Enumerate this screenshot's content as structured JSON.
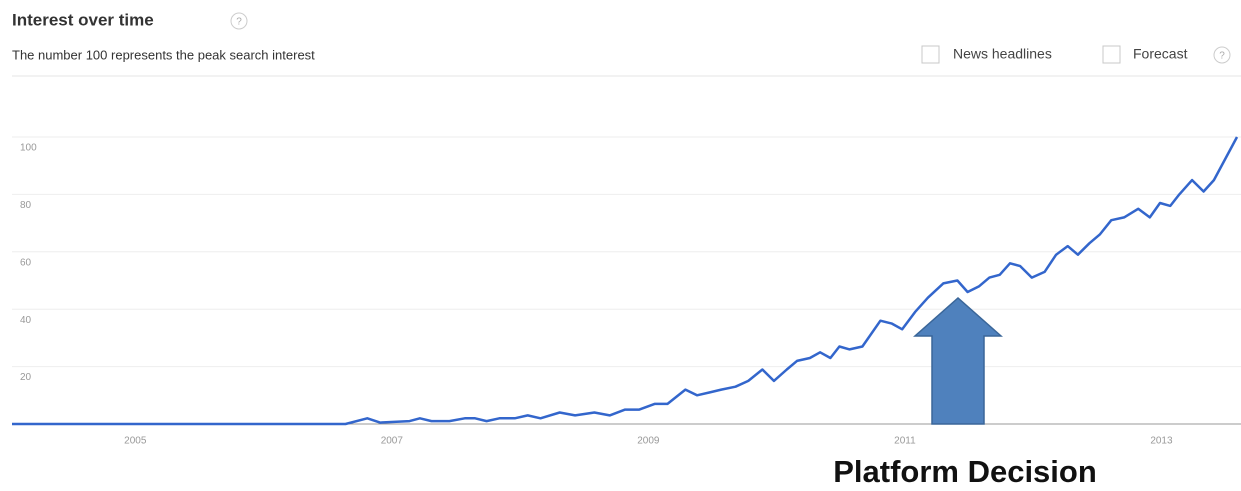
{
  "header": {
    "title": "Interest over time",
    "subtitle": "The number 100 represents the peak search interest",
    "help_icon": "?",
    "options": [
      "News headlines",
      "Forecast"
    ]
  },
  "chart_data": {
    "type": "line",
    "color": "#3366cc",
    "grid": true,
    "x": [
      2004.0,
      2006.6,
      2006.77,
      2006.87,
      2007.1,
      2007.18,
      2007.27,
      2007.41,
      2007.53,
      2007.61,
      2007.7,
      2007.8,
      2007.92,
      2008.02,
      2008.12,
      2008.27,
      2008.39,
      2008.54,
      2008.66,
      2008.78,
      2008.89,
      2009.01,
      2009.11,
      2009.25,
      2009.34,
      2009.44,
      2009.53,
      2009.64,
      2009.74,
      2009.85,
      2009.94,
      2010.04,
      2010.12,
      2010.22,
      2010.3,
      2010.38,
      2010.45,
      2010.53,
      2010.63,
      2010.77,
      2010.86,
      2010.94,
      2011.04,
      2011.14,
      2011.26,
      2011.37,
      2011.45,
      2011.54,
      2011.62,
      2011.7,
      2011.78,
      2011.86,
      2011.95,
      2012.05,
      2012.14,
      2012.23,
      2012.31,
      2012.4,
      2012.48,
      2012.57,
      2012.67,
      2012.78,
      2012.87,
      2012.95,
      2013.03,
      2013.1,
      2013.2,
      2013.29,
      2013.37,
      2013.55
    ],
    "values": [
      0,
      0,
      2,
      0.5,
      1,
      2,
      1,
      1,
      2,
      2,
      1,
      2,
      2,
      3,
      2,
      4,
      3,
      4,
      3,
      5,
      5,
      7,
      7,
      12,
      10,
      11,
      12,
      13,
      15,
      19,
      15,
      19,
      22,
      23,
      25,
      23,
      27,
      26,
      27,
      36,
      35,
      33,
      39,
      44,
      49,
      50,
      46,
      48,
      51,
      52,
      56,
      55,
      51,
      53,
      59,
      62,
      59,
      63,
      66,
      71,
      72,
      75,
      72,
      77,
      76,
      80,
      85,
      81,
      85,
      100
    ],
    "xlim": [
      2004.0,
      2013.55
    ],
    "xticks": [
      2005,
      2007,
      2009,
      2011,
      2013
    ],
    "ylim": [
      0,
      100
    ],
    "yticks": [
      20,
      40,
      60,
      80,
      100
    ],
    "annotation": "Platform Decision"
  }
}
